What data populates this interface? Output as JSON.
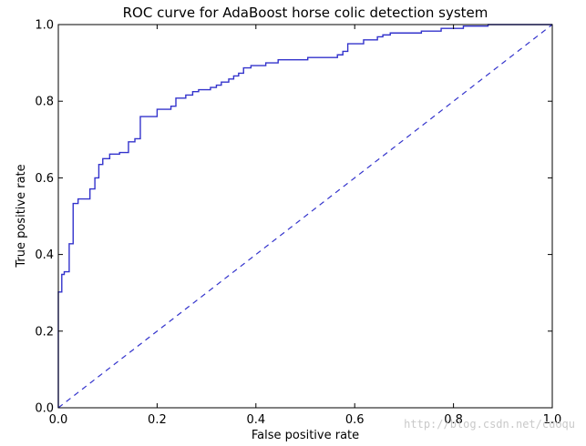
{
  "chart_data": {
    "type": "line",
    "title": "ROC curve for AdaBoost horse colic detection system",
    "xlabel": "False positive rate",
    "ylabel": "True positive rate",
    "xlim": [
      0,
      1
    ],
    "ylim": [
      0,
      1
    ],
    "x_ticks": [
      "0.0",
      "0.2",
      "0.4",
      "0.6",
      "0.8",
      "1.0"
    ],
    "y_ticks": [
      "0.0",
      "0.2",
      "0.4",
      "0.6",
      "0.8",
      "1.0"
    ],
    "grid": false,
    "series": [
      {
        "style": "solid",
        "color": "#3333cc",
        "x": [
          0.0,
          0.0,
          0.007,
          0.007,
          0.012,
          0.012,
          0.022,
          0.022,
          0.03,
          0.03,
          0.04,
          0.04,
          0.064,
          0.064,
          0.074,
          0.074,
          0.082,
          0.082,
          0.09,
          0.09,
          0.104,
          0.104,
          0.124,
          0.124,
          0.142,
          0.142,
          0.155,
          0.155,
          0.166,
          0.166,
          0.2,
          0.2,
          0.228,
          0.228,
          0.238,
          0.238,
          0.258,
          0.258,
          0.272,
          0.272,
          0.284,
          0.284,
          0.308,
          0.308,
          0.32,
          0.32,
          0.33,
          0.33,
          0.345,
          0.345,
          0.355,
          0.355,
          0.365,
          0.365,
          0.375,
          0.375,
          0.39,
          0.39,
          0.42,
          0.42,
          0.445,
          0.445,
          0.505,
          0.505,
          0.565,
          0.565,
          0.576,
          0.576,
          0.586,
          0.586,
          0.618,
          0.618,
          0.646,
          0.646,
          0.657,
          0.657,
          0.672,
          0.672,
          0.735,
          0.735,
          0.775,
          0.775,
          0.82,
          0.82,
          0.87,
          0.87,
          1.0
        ],
        "y": [
          0.0,
          0.302,
          0.302,
          0.348,
          0.348,
          0.355,
          0.355,
          0.428,
          0.428,
          0.533,
          0.533,
          0.545,
          0.545,
          0.571,
          0.571,
          0.6,
          0.6,
          0.635,
          0.635,
          0.65,
          0.65,
          0.662,
          0.662,
          0.666,
          0.666,
          0.694,
          0.694,
          0.702,
          0.702,
          0.76,
          0.76,
          0.779,
          0.779,
          0.787,
          0.787,
          0.808,
          0.808,
          0.816,
          0.816,
          0.825,
          0.825,
          0.83,
          0.83,
          0.836,
          0.836,
          0.842,
          0.842,
          0.85,
          0.85,
          0.858,
          0.858,
          0.866,
          0.866,
          0.873,
          0.873,
          0.887,
          0.887,
          0.893,
          0.893,
          0.9,
          0.9,
          0.908,
          0.908,
          0.914,
          0.914,
          0.921,
          0.921,
          0.93,
          0.93,
          0.95,
          0.95,
          0.96,
          0.96,
          0.968,
          0.968,
          0.973,
          0.973,
          0.978,
          0.978,
          0.983,
          0.983,
          0.99,
          0.99,
          0.996,
          0.996,
          1.0,
          1.0
        ]
      },
      {
        "style": "dashed",
        "color": "#3333cc",
        "x": [
          0,
          1
        ],
        "y": [
          0,
          1
        ]
      }
    ]
  },
  "watermark": "http://blog.csdn.net/cuoqu"
}
